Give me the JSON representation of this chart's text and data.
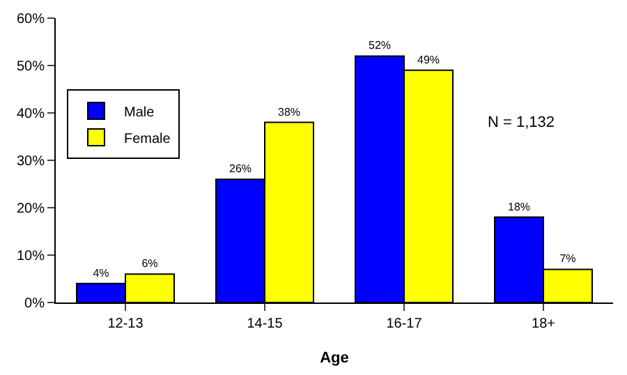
{
  "chart_data": {
    "type": "bar",
    "xlabel": "Age",
    "categories": [
      "12-13",
      "14-15",
      "16-17",
      "18+"
    ],
    "series": [
      {
        "name": "Male",
        "color": "#0000ff",
        "values": [
          4,
          26,
          52,
          18
        ],
        "value_labels": [
          "4%",
          "26%",
          "52%",
          "18%"
        ]
      },
      {
        "name": "Female",
        "color": "#ffff00",
        "values": [
          6,
          38,
          49,
          7
        ],
        "value_labels": [
          "6%",
          "38%",
          "49%",
          "7%"
        ]
      }
    ],
    "ylim": [
      0,
      60
    ],
    "yticks": [
      {
        "value": 0,
        "label": "0%"
      },
      {
        "value": 10,
        "label": "10%"
      },
      {
        "value": 20,
        "label": "20%"
      },
      {
        "value": 30,
        "label": "30%"
      },
      {
        "value": 40,
        "label": "40%"
      },
      {
        "value": 50,
        "label": "50%"
      },
      {
        "value": 60,
        "label": "60%"
      }
    ],
    "legend": "top left",
    "annotations": [
      "N = 1,132"
    ]
  }
}
